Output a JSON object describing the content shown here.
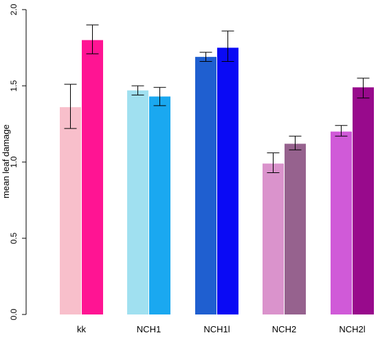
{
  "chart_data": {
    "type": "bar",
    "ylabel": "mean leaf damage",
    "xlabel": "",
    "ylim": [
      0,
      2.0
    ],
    "yticks": [
      "0.0",
      "0.5",
      "1.0",
      "1.5",
      "2.0"
    ],
    "grid": false,
    "categories": [
      "kk",
      "NCH1",
      "NCH1l",
      "NCH2",
      "NCH2l"
    ],
    "bars": [
      {
        "group": "kk",
        "value": 1.36,
        "err_low": 1.22,
        "err_high": 1.51,
        "color": "#F8BFCB"
      },
      {
        "group": "kk",
        "value": 1.8,
        "err_low": 1.71,
        "err_high": 1.9,
        "color": "#FF1493"
      },
      {
        "group": "NCH1",
        "value": 1.47,
        "err_low": 1.44,
        "err_high": 1.5,
        "color": "#A0E0F0"
      },
      {
        "group": "NCH1",
        "value": 1.43,
        "err_low": 1.37,
        "err_high": 1.49,
        "color": "#1AA8F0"
      },
      {
        "group": "NCH1l",
        "value": 1.69,
        "err_low": 1.66,
        "err_high": 1.72,
        "color": "#1F5FD0"
      },
      {
        "group": "NCH1l",
        "value": 1.75,
        "err_low": 1.66,
        "err_high": 1.86,
        "color": "#0A0AF5"
      },
      {
        "group": "NCH2",
        "value": 0.99,
        "err_low": 0.93,
        "err_high": 1.06,
        "color": "#DA93CC"
      },
      {
        "group": "NCH2",
        "value": 1.12,
        "err_low": 1.08,
        "err_high": 1.17,
        "color": "#96628E"
      },
      {
        "group": "NCH2l",
        "value": 1.2,
        "err_low": 1.17,
        "err_high": 1.24,
        "color": "#D05AD8"
      },
      {
        "group": "NCH2l",
        "value": 1.49,
        "err_low": 1.42,
        "err_high": 1.55,
        "color": "#980A8C"
      }
    ]
  }
}
